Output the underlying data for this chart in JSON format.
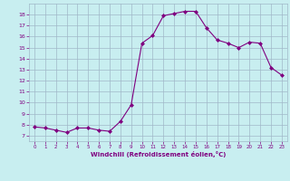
{
  "x": [
    0,
    1,
    2,
    3,
    4,
    5,
    6,
    7,
    8,
    9,
    10,
    11,
    12,
    13,
    14,
    15,
    16,
    17,
    18,
    19,
    20,
    21,
    22,
    23
  ],
  "y": [
    7.8,
    7.7,
    7.5,
    7.3,
    7.7,
    7.7,
    7.5,
    7.4,
    8.3,
    9.8,
    15.4,
    16.1,
    17.9,
    18.1,
    18.3,
    18.3,
    16.8,
    15.7,
    15.4,
    15.0,
    15.5,
    15.4,
    13.2,
    12.5
  ],
  "line_color": "#800080",
  "marker": "D",
  "marker_size": 2,
  "bg_color": "#c8eef0",
  "grid_color": "#a0b8c8",
  "xlabel": "Windchill (Refroidissement éolien,°C)",
  "xlabel_color": "#800080",
  "tick_color": "#800080",
  "xlim": [
    -0.5,
    23.5
  ],
  "ylim": [
    6.5,
    19.0
  ],
  "yticks": [
    7,
    8,
    9,
    10,
    11,
    12,
    13,
    14,
    15,
    16,
    17,
    18
  ],
  "xticks": [
    0,
    1,
    2,
    3,
    4,
    5,
    6,
    7,
    8,
    9,
    10,
    11,
    12,
    13,
    14,
    15,
    16,
    17,
    18,
    19,
    20,
    21,
    22,
    23
  ]
}
